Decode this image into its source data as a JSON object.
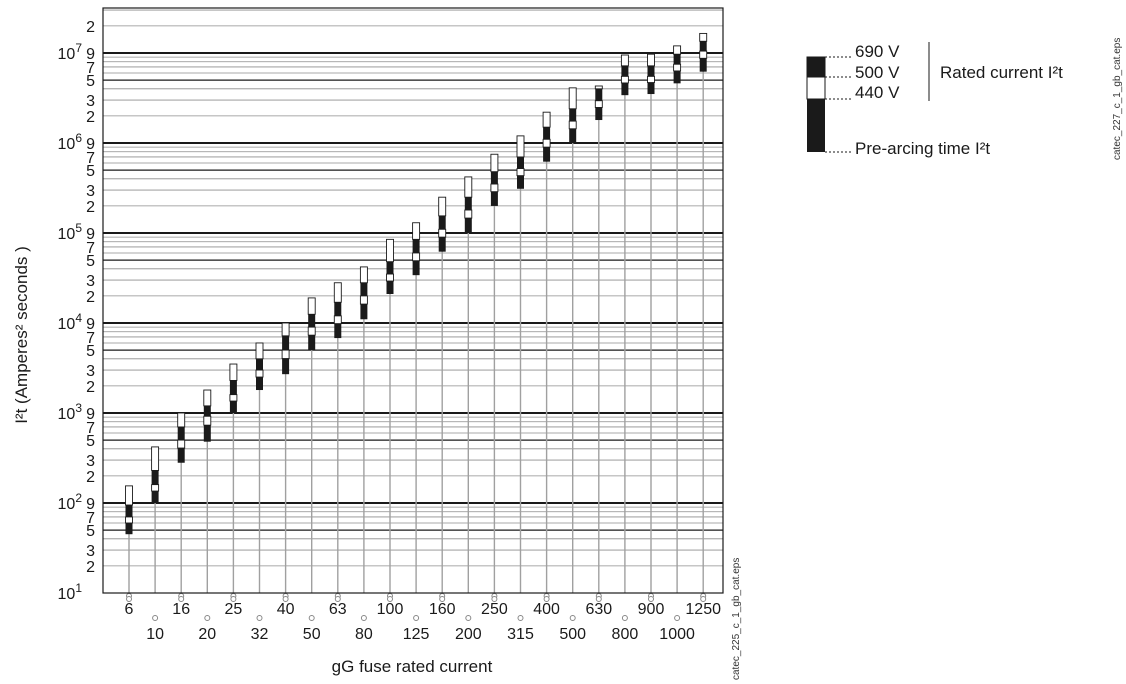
{
  "chart_data": {
    "type": "bar",
    "ylabel": "I²t (Amperes² seconds )",
    "xlabel": "gG fuse rated current",
    "yscale": "log",
    "ylim": [
      10,
      20000000
    ],
    "y_decade_labels": [
      "10",
      "10",
      "10",
      "10",
      "10",
      "10",
      "10"
    ],
    "y_decade_exponents": [
      "1",
      "2",
      "3",
      "4",
      "5",
      "6",
      "7"
    ],
    "y_minor_labels": [
      "2",
      "3",
      "5",
      "7",
      "9"
    ],
    "y_top_label": "2",
    "categories": [
      "6",
      "10",
      "16",
      "20",
      "25",
      "32",
      "40",
      "50",
      "63",
      "80",
      "100",
      "125",
      "160",
      "200",
      "250",
      "315",
      "400",
      "500",
      "630",
      "800",
      "900",
      "1000",
      "1250"
    ],
    "series": [
      {
        "name": "Pre-arcing time I²t",
        "values": [
          45,
          100,
          280,
          480,
          1000,
          1800,
          2700,
          5000,
          6800,
          11000,
          21000,
          34000,
          62000,
          100000,
          200000,
          310000,
          620000,
          1000000,
          1800000,
          3400000,
          3500000,
          4600000,
          6200000
        ]
      },
      {
        "name": "440 V",
        "values": [
          70,
          160,
          500,
          920,
          1600,
          3000,
          5000,
          9000,
          12000,
          20000,
          35000,
          60000,
          110000,
          180000,
          350000,
          520000,
          1100000,
          1750000,
          2950000,
          5500000,
          5500000,
          7500000,
          10500000
        ]
      },
      {
        "name": "500 V",
        "values": [
          95,
          230,
          700,
          1200,
          2300,
          4000,
          7200,
          12500,
          17000,
          28000,
          48000,
          85000,
          155000,
          250000,
          480000,
          700000,
          1500000,
          2400000,
          4000000,
          7200000,
          7200000,
          9700000,
          13500000
        ]
      },
      {
        "name": "690 V",
        "values": [
          155,
          420,
          1000,
          1800,
          3500,
          6000,
          10000,
          19000,
          28000,
          42000,
          85000,
          130000,
          250000,
          420000,
          750000,
          1200000,
          2200000,
          4100000,
          4300000,
          9500000,
          9700000,
          12000000,
          16500000
        ]
      }
    ],
    "legend": {
      "position": "top-right",
      "labels": [
        "690 V",
        "500 V",
        "440 V",
        "Pre-arcing time I²t"
      ],
      "group_label": "Rated current I²t"
    },
    "colors": {
      "bar_dark": "#1a1a1a",
      "bar_light": "#ffffff",
      "major_grid": "#1a1a1a",
      "minor_grid": "#8c8c8c",
      "stem": "#a0a0a0"
    },
    "annotations": [
      "catec_225_c_1_gb_cat.eps",
      "catec_227_c_1_gb_cat.eps"
    ],
    "grid": true
  }
}
